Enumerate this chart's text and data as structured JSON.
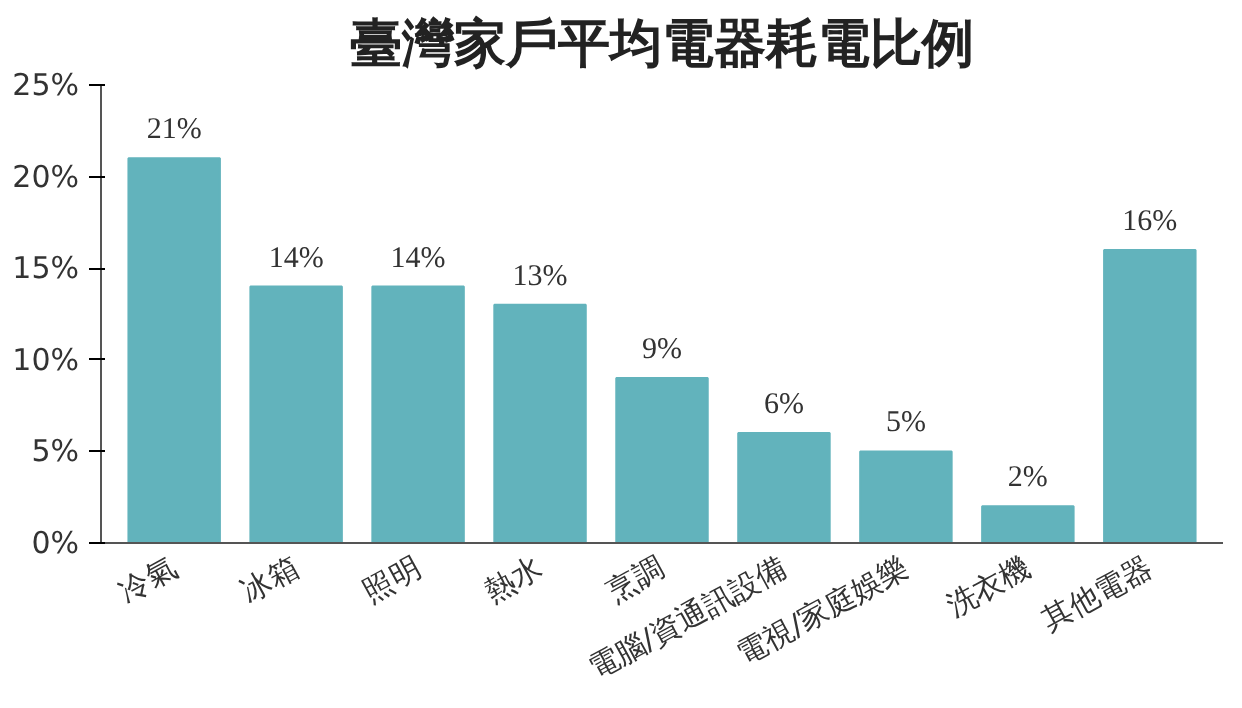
{
  "chart_data": {
    "type": "bar",
    "title": "臺灣家戶平均電器耗電比例",
    "categories": [
      "冷氣",
      "冰箱",
      "照明",
      "熱水",
      "烹調",
      "電腦/資通訊設備",
      "電視/家庭娛樂",
      "洗衣機",
      "其他電器"
    ],
    "values": [
      21,
      14,
      14,
      13,
      9,
      6,
      5,
      2,
      16
    ],
    "value_labels": [
      "21%",
      "14%",
      "14%",
      "13%",
      "9%",
      "6%",
      "5%",
      "2%",
      "16%"
    ],
    "color": "#62b3bc",
    "ylim": [
      0,
      25
    ],
    "yticks": [
      {
        "value": 0,
        "label": "0%"
      },
      {
        "value": 5,
        "label": "5%"
      },
      {
        "value": 10,
        "label": "10%"
      },
      {
        "value": 15,
        "label": "15%"
      },
      {
        "value": 20,
        "label": "20%"
      },
      {
        "value": 25,
        "label": "25%"
      }
    ]
  }
}
